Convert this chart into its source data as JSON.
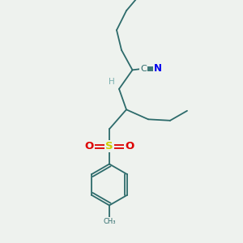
{
  "background_color": "#eef2ee",
  "bond_color": "#2d6b6b",
  "N_color": "#0000ee",
  "S_color": "#cccc00",
  "O_color": "#dd0000",
  "H_color": "#7aafaf",
  "figsize": [
    3.0,
    3.0
  ],
  "dpi": 100,
  "xlim": [
    0,
    10
  ],
  "ylim": [
    0,
    10
  ]
}
